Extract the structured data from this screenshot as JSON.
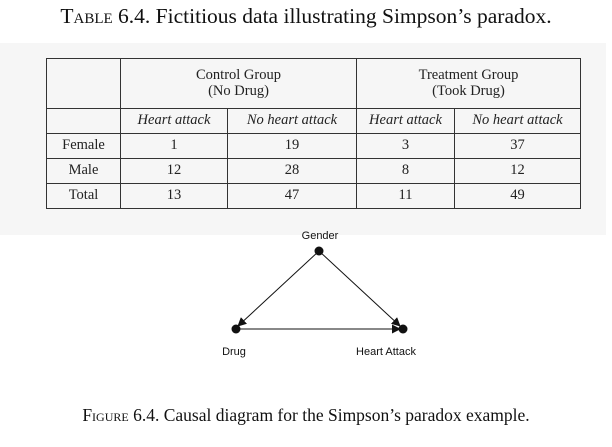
{
  "table": {
    "caption_prefix": "Table",
    "caption_text": " 6.4. Fictitious data illustrating Simpson’s paradox.",
    "groups": [
      {
        "line1": "Control Group",
        "line2": "(No Drug)"
      },
      {
        "line1": "Treatment Group",
        "line2": "(Took Drug)"
      }
    ],
    "subheaders": [
      "Heart attack",
      "No heart attack",
      "Heart attack",
      "No heart attack"
    ],
    "rows": [
      {
        "label": "Female",
        "cells": [
          "1",
          "19",
          "3",
          "37"
        ]
      },
      {
        "label": "Male",
        "cells": [
          "12",
          "28",
          "8",
          "12"
        ]
      },
      {
        "label": "Total",
        "cells": [
          "13",
          "47",
          "11",
          "49"
        ]
      }
    ]
  },
  "diagram": {
    "nodes": {
      "gender": "Gender",
      "drug": "Drug",
      "heart_attack": "Heart Attack"
    }
  },
  "figure": {
    "caption_prefix": "Figure",
    "caption_text": " 6.4. Causal diagram for the Simpson’s paradox example."
  }
}
